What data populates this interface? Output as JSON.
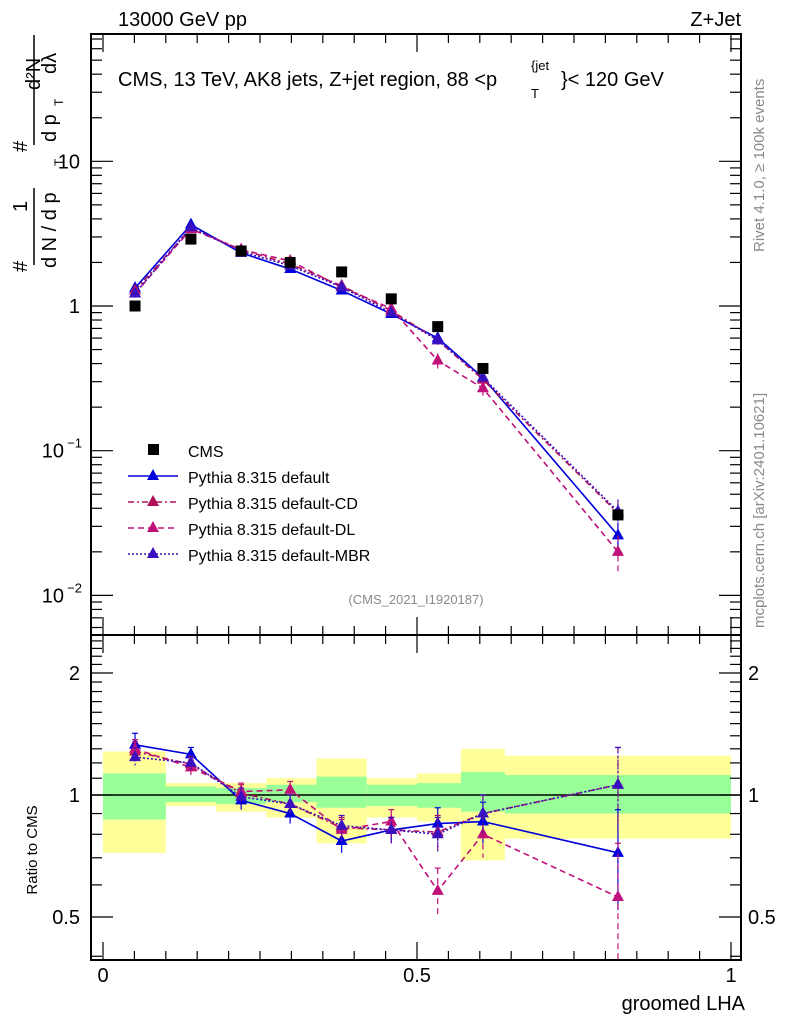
{
  "header": {
    "left": "13000 GeV pp",
    "right": "Z+Jet"
  },
  "side_labels": {
    "rivet": "Rivet 4.1.0, ≥ 100k events",
    "mcplots": "mcplots.cern.ch [arXiv:2401.10621]"
  },
  "chart_data": [
    {
      "type": "scatter",
      "title": "CMS, 13 TeV, AK8 jets, Z+jet region, 88 <p_T^{jet}< 120 GeV",
      "title_parts": {
        "main": "CMS, 13 TeV, AK8 jets, Z+jet region, 88 <p",
        "sup": "{jet",
        "sub": "T",
        "tail": "}< 120 GeV"
      },
      "analysis_id": "(CMS_2021_I1920187)",
      "ylabel": "1/dN/dp_T d2N/dp_T dλ",
      "ylabel_parts": {
        "hash": "#",
        "one": "1",
        "denom": "d N / d p",
        "T": "T",
        "num": "d²N",
        "denom2": "d p",
        "dl": "dλ"
      },
      "yscale": "log",
      "ylim": [
        0.006,
        90
      ],
      "yticks": [
        {
          "value": 10,
          "label": "10"
        },
        {
          "value": 1,
          "label": "1"
        },
        {
          "value": 0.1,
          "label": "10",
          "exp": "−1"
        },
        {
          "value": 0.01,
          "label": "10",
          "exp": "−2"
        }
      ],
      "xlim": [
        -0.02,
        1.02
      ],
      "legend_position": "bottom-left",
      "x": [
        0.051,
        0.14,
        0.22,
        0.298,
        0.38,
        0.459,
        0.533,
        0.605,
        0.82
      ],
      "series": [
        {
          "name": "CMS",
          "style": "marker-square",
          "color": "#000000",
          "values": [
            1.0,
            2.9,
            2.4,
            2.0,
            1.72,
            1.12,
            0.72,
            0.37,
            0.036
          ]
        },
        {
          "name": "Pythia 8.315 default",
          "style": "solid",
          "color": "#0000dd",
          "values": [
            1.33,
            3.65,
            2.33,
            1.8,
            1.28,
            0.88,
            0.6,
            0.32,
            0.026
          ],
          "errors": [
            0.08,
            0.12,
            0.07,
            0.06,
            0.05,
            0.04,
            0.04,
            0.03,
            0.006
          ]
        },
        {
          "name": "Pythia 8.315 default-CD",
          "style": "dashdot",
          "color": "#b0105a",
          "values": [
            1.28,
            3.45,
            2.45,
            1.95,
            1.38,
            0.93,
            0.58,
            0.31,
            0.037
          ],
          "errors": [
            0.08,
            0.12,
            0.07,
            0.06,
            0.05,
            0.04,
            0.04,
            0.03,
            0.008
          ]
        },
        {
          "name": "Pythia 8.315 default-DL",
          "style": "dashed",
          "color": "#c0107a",
          "values": [
            1.22,
            3.4,
            2.45,
            2.05,
            1.35,
            0.96,
            0.42,
            0.27,
            0.02
          ],
          "errors": [
            0.08,
            0.12,
            0.07,
            0.06,
            0.05,
            0.04,
            0.05,
            0.03,
            0.006
          ]
        },
        {
          "name": "Pythia 8.315 default-MBR",
          "style": "dotted",
          "color": "#3a10c0",
          "values": [
            1.22,
            3.5,
            2.38,
            1.9,
            1.35,
            0.9,
            0.58,
            0.32,
            0.038
          ],
          "errors": [
            0.08,
            0.12,
            0.07,
            0.06,
            0.05,
            0.04,
            0.04,
            0.03,
            0.008
          ]
        }
      ]
    },
    {
      "type": "scatter",
      "ylabel": "Ratio to CMS",
      "xlabel": "groomed LHA",
      "yscale": "log",
      "ylim": [
        0.39,
        2.55
      ],
      "yticks": [
        {
          "value": 2,
          "label": "2"
        },
        {
          "value": 1,
          "label": "1"
        },
        {
          "value": 0.5,
          "label": "0.5"
        }
      ],
      "xticks": [
        {
          "value": 0,
          "label": "0"
        },
        {
          "value": 0.5,
          "label": "0.5"
        },
        {
          "value": 1,
          "label": "1"
        }
      ],
      "xlim": [
        -0.02,
        1.02
      ],
      "reference_line": 1,
      "bands": {
        "edges": [
          0.0,
          0.1,
          0.18,
          0.26,
          0.34,
          0.42,
          0.5,
          0.57,
          0.64,
          1.0
        ],
        "green": [
          [
            0.87,
            1.13
          ],
          [
            0.96,
            1.05
          ],
          [
            0.95,
            1.04
          ],
          [
            0.96,
            1.06
          ],
          [
            0.93,
            1.11
          ],
          [
            0.94,
            1.06
          ],
          [
            0.93,
            1.07
          ],
          [
            0.91,
            1.14
          ],
          [
            0.9,
            1.12
          ]
        ],
        "yellow": [
          [
            0.72,
            1.28
          ],
          [
            0.94,
            1.07
          ],
          [
            0.91,
            1.07
          ],
          [
            0.88,
            1.1
          ],
          [
            0.76,
            1.23
          ],
          [
            0.88,
            1.1
          ],
          [
            0.86,
            1.13
          ],
          [
            0.69,
            1.3
          ],
          [
            0.78,
            1.25
          ]
        ],
        "green_color": "#99ff99",
        "yellow_color": "#ffff99"
      },
      "x": [
        0.051,
        0.14,
        0.22,
        0.298,
        0.38,
        0.459,
        0.533,
        0.605,
        0.82
      ],
      "series": [
        {
          "name": "Pythia 8.315 default",
          "color": "#0000dd",
          "style": "solid",
          "values": [
            1.33,
            1.26,
            0.97,
            0.9,
            0.77,
            0.82,
            0.85,
            0.86,
            0.72
          ],
          "errors": [
            0.09,
            0.05,
            0.05,
            0.05,
            0.05,
            0.06,
            0.08,
            0.1,
            0.2
          ]
        },
        {
          "name": "Pythia 8.315 default-CD",
          "color": "#b0105a",
          "style": "dashdot",
          "values": [
            1.28,
            1.19,
            1.01,
            0.95,
            0.83,
            0.82,
            0.81,
            0.9,
            1.06
          ],
          "errors": [
            0.07,
            0.05,
            0.05,
            0.05,
            0.05,
            0.06,
            0.08,
            0.1,
            0.25
          ]
        },
        {
          "name": "Pythia 8.315 default-DL",
          "color": "#c0107a",
          "style": "dashed",
          "values": [
            1.3,
            1.17,
            1.02,
            1.03,
            0.82,
            0.86,
            0.58,
            0.8,
            0.56
          ],
          "errors": [
            0.07,
            0.05,
            0.05,
            0.05,
            0.05,
            0.06,
            0.08,
            0.1,
            0.2
          ]
        },
        {
          "name": "Pythia 8.315 default-MBR",
          "color": "#3a10c0",
          "style": "dotted",
          "values": [
            1.24,
            1.2,
            0.99,
            0.95,
            0.84,
            0.82,
            0.8,
            0.9,
            1.06
          ],
          "errors": [
            0.07,
            0.05,
            0.05,
            0.05,
            0.05,
            0.06,
            0.08,
            0.1,
            0.25
          ]
        }
      ]
    }
  ]
}
